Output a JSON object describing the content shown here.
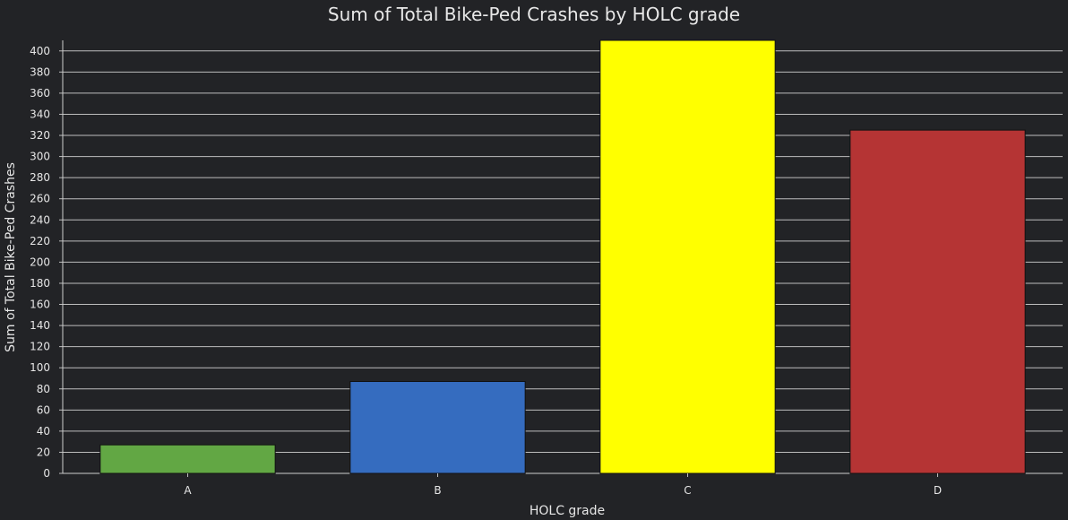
{
  "chart_data": {
    "type": "bar",
    "title": "Sum of Total Bike-Ped Crashes by HOLC grade",
    "xlabel": "HOLC grade",
    "ylabel": "Sum of Total Bike-Ped Crashes",
    "categories": [
      "A",
      "B",
      "C",
      "D"
    ],
    "values": [
      27,
      87,
      410,
      325
    ],
    "colors": [
      "#62a744",
      "#356cbf",
      "#ffff00",
      "#b53434"
    ],
    "ylim": [
      0,
      410
    ],
    "yticks": [
      0,
      20,
      40,
      60,
      80,
      100,
      120,
      140,
      160,
      180,
      200,
      220,
      240,
      260,
      280,
      300,
      320,
      340,
      360,
      380,
      400
    ],
    "grid": true,
    "legend": "none"
  }
}
